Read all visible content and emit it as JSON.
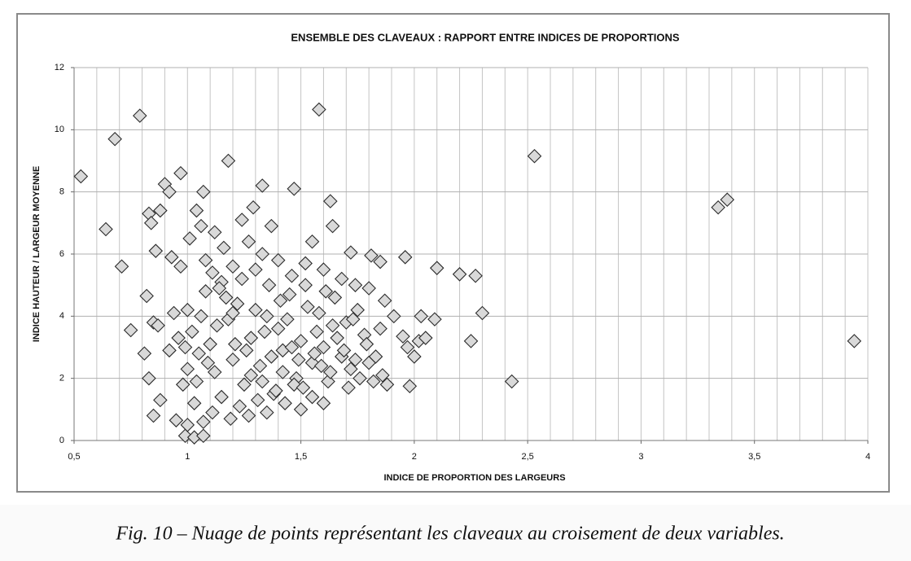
{
  "chart_data": {
    "type": "scatter",
    "title": "ENSEMBLE DES CLAVEAUX : RAPPORT ENTRE INDICES DE PROPORTIONS",
    "x_label": "INDICE DE PROPORTION DES LARGEURS",
    "y_label": "INDICE HAUTEUR / LARGEUR MOYENNE",
    "color": "#d9d9d9",
    "grid": true,
    "xlim": [
      0.5,
      4
    ],
    "ylim": [
      0,
      12
    ],
    "xticks": [
      {
        "value": 0.5,
        "label": "0,5"
      },
      1,
      {
        "value": 1.5,
        "label": "1,5"
      },
      2,
      {
        "value": 2.5,
        "label": "2,5"
      },
      3,
      {
        "value": 3.5,
        "label": "3,5"
      },
      4
    ],
    "yticks": [
      0,
      2,
      4,
      6,
      8,
      10,
      12
    ],
    "x": [
      0.53,
      0.64,
      0.68,
      0.71,
      0.75,
      0.79,
      0.81,
      0.82,
      0.83,
      0.83,
      0.84,
      0.85,
      0.85,
      0.86,
      0.87,
      0.88,
      0.88,
      0.9,
      0.92,
      0.97,
      1.07,
      1.18,
      1.33,
      1.47,
      1.58,
      1.63,
      1.64,
      1.55,
      1.72,
      1.81,
      1.85,
      1.96,
      2.1,
      2.2,
      2.27,
      1.87,
      1.91,
      2.03,
      2.09,
      2.3,
      1.95,
      1.97,
      2.0,
      2.02,
      2.05,
      2.25,
      1.98,
      1.88,
      2.43,
      2.53,
      3.34,
      3.38,
      3.94,
      1.6,
      1.5,
      0.99,
      1.03,
      1.07,
      0.95,
      1.0,
      1.0,
      1.02,
      1.05,
      1.08,
      1.1,
      1.12,
      1.15,
      1.18,
      1.2,
      1.22,
      1.25,
      1.28,
      1.3,
      1.32,
      1.35,
      1.38,
      1.4,
      1.42,
      1.45,
      1.48,
      1.5,
      1.52,
      1.55,
      1.58,
      1.6,
      1.62,
      1.65,
      1.68,
      1.7,
      1.72,
      1.75,
      1.78,
      1.8,
      1.82,
      1.85,
      0.92,
      0.94,
      0.96,
      0.98,
      0.93,
      0.97,
      1.01,
      1.04,
      1.06,
      1.08,
      1.12,
      1.16,
      1.2,
      1.24,
      1.27,
      1.29,
      1.33,
      1.37,
      1.4,
      1.46,
      1.52,
      1.6,
      1.68,
      1.74,
      1.8,
      1.03,
      1.07,
      1.11,
      1.15,
      1.19,
      1.23,
      1.27,
      1.31,
      1.35,
      1.39,
      1.43,
      1.47,
      1.55,
      1.63,
      1.71,
      1.76,
      1.0,
      1.04,
      1.09,
      1.13,
      1.17,
      1.21,
      1.26,
      1.3,
      1.34,
      1.37,
      1.41,
      1.44,
      1.49,
      1.53,
      1.57,
      1.61,
      1.66,
      1.69,
      1.73,
      0.99,
      1.06,
      1.14,
      1.24,
      1.36,
      1.46,
      1.56,
      1.64,
      1.74,
      1.79,
      1.83,
      1.86,
      1.11,
      1.2,
      1.28,
      1.33,
      1.42,
      1.51,
      1.59
    ],
    "values": [
      8.5,
      6.8,
      9.7,
      5.6,
      3.55,
      10.45,
      2.8,
      4.65,
      2.0,
      7.3,
      7.0,
      0.8,
      3.8,
      6.1,
      3.7,
      1.3,
      7.4,
      8.25,
      8.0,
      8.6,
      8.0,
      9.0,
      8.2,
      8.1,
      10.65,
      7.7,
      6.9,
      6.4,
      6.05,
      5.95,
      5.75,
      5.9,
      5.55,
      5.35,
      5.3,
      4.5,
      4.0,
      4.0,
      3.9,
      4.1,
      3.35,
      3.0,
      2.7,
      3.2,
      3.3,
      3.2,
      1.75,
      1.8,
      1.9,
      9.15,
      7.5,
      7.75,
      3.2,
      1.2,
      1.0,
      0.15,
      0.1,
      0.15,
      0.65,
      0.5,
      4.2,
      3.5,
      2.8,
      4.8,
      3.1,
      2.2,
      5.1,
      3.9,
      2.6,
      4.4,
      1.8,
      3.3,
      5.5,
      2.4,
      4.0,
      1.5,
      3.6,
      2.9,
      4.7,
      2.0,
      3.2,
      5.0,
      2.5,
      4.1,
      3.0,
      1.9,
      4.6,
      2.7,
      3.8,
      2.3,
      4.2,
      3.4,
      2.5,
      1.9,
      3.6,
      2.9,
      4.1,
      3.3,
      1.8,
      5.9,
      5.6,
      6.5,
      7.4,
      6.9,
      5.8,
      6.7,
      6.2,
      5.6,
      7.1,
      6.4,
      7.5,
      6.0,
      6.9,
      5.8,
      5.3,
      5.7,
      5.5,
      5.2,
      5.0,
      4.9,
      1.2,
      0.6,
      0.9,
      1.4,
      0.7,
      1.1,
      0.8,
      1.3,
      0.9,
      1.6,
      1.2,
      1.8,
      1.4,
      2.2,
      1.7,
      2.0,
      2.3,
      1.9,
      2.5,
      3.7,
      4.6,
      3.1,
      2.9,
      4.2,
      3.5,
      2.7,
      4.5,
      3.9,
      2.6,
      4.3,
      3.5,
      4.8,
      3.3,
      2.9,
      3.9,
      3.0,
      4.0,
      4.9,
      5.2,
      5.0,
      3.0,
      2.8,
      3.7,
      2.6,
      3.1,
      2.7,
      2.1,
      5.4,
      4.1,
      2.1,
      1.9,
      2.2,
      1.7,
      2.4
    ]
  },
  "caption": "Fig. 10 – Nuage de points représentant les claveaux au croisement de deux variables."
}
